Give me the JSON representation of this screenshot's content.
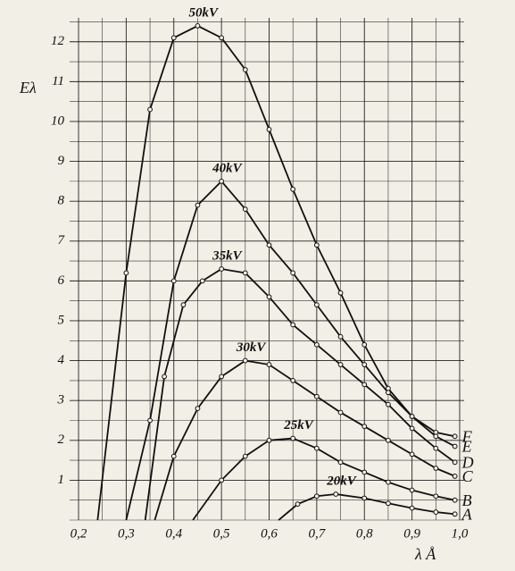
{
  "chart_data": {
    "type": "line",
    "ylabel": "Eλ",
    "xlabel": "λ Å",
    "xlim": [
      0.2,
      1.0
    ],
    "ylim": [
      0,
      12.6
    ],
    "xticks": [
      {
        "value": 0.2,
        "label": "0,2"
      },
      {
        "value": 0.3,
        "label": "0,3"
      },
      {
        "value": 0.4,
        "label": "0,4"
      },
      {
        "value": 0.5,
        "label": "0,5"
      },
      {
        "value": 0.6,
        "label": "0,6"
      },
      {
        "value": 0.7,
        "label": "0,7"
      },
      {
        "value": 0.8,
        "label": "0,8"
      },
      {
        "value": 0.9,
        "label": "0,9"
      },
      {
        "value": 1.0,
        "label": "1,0"
      }
    ],
    "yticks": [
      1,
      2,
      3,
      4,
      5,
      6,
      7,
      8,
      9,
      10,
      11,
      12
    ],
    "xminorticks": [
      0.25,
      0.35,
      0.45,
      0.55,
      0.65,
      0.75,
      0.85,
      0.95
    ],
    "yminorticks": [
      0,
      0.5,
      1.5,
      2.5,
      3.5,
      4.5,
      5.5,
      6.5,
      7.5,
      8.5,
      9.5,
      10.5,
      11.5,
      12.5
    ],
    "grid": true,
    "color": "#111111",
    "series": [
      {
        "name": "50kV",
        "end_label": "F",
        "x": [
          0.24,
          0.3,
          0.35,
          0.4,
          0.45,
          0.5,
          0.55,
          0.6,
          0.65,
          0.7,
          0.75,
          0.8,
          0.85,
          0.9,
          0.95,
          0.99
        ],
        "values": [
          0,
          6.2,
          10.3,
          12.1,
          12.4,
          12.1,
          11.3,
          9.8,
          8.3,
          6.9,
          5.7,
          4.4,
          3.3,
          2.6,
          2.2,
          2.1
        ]
      },
      {
        "name": "40kV",
        "end_label": "E",
        "x": [
          0.3,
          0.35,
          0.4,
          0.45,
          0.5,
          0.55,
          0.6,
          0.65,
          0.7,
          0.75,
          0.8,
          0.85,
          0.9,
          0.95,
          0.99
        ],
        "values": [
          0,
          2.5,
          6.0,
          7.9,
          8.5,
          7.8,
          6.9,
          6.2,
          5.4,
          4.6,
          3.9,
          3.2,
          2.6,
          2.1,
          1.85
        ]
      },
      {
        "name": "35kV",
        "end_label": "D",
        "x": [
          0.34,
          0.38,
          0.42,
          0.46,
          0.5,
          0.55,
          0.6,
          0.65,
          0.7,
          0.75,
          0.8,
          0.85,
          0.9,
          0.95,
          0.99
        ],
        "values": [
          0,
          3.6,
          5.4,
          6.0,
          6.3,
          6.2,
          5.6,
          4.9,
          4.4,
          3.9,
          3.4,
          2.9,
          2.3,
          1.8,
          1.45
        ]
      },
      {
        "name": "30kV",
        "end_label": "C",
        "x": [
          0.36,
          0.4,
          0.45,
          0.5,
          0.55,
          0.6,
          0.65,
          0.7,
          0.75,
          0.8,
          0.85,
          0.9,
          0.95,
          0.99
        ],
        "values": [
          0,
          1.6,
          2.8,
          3.6,
          4.0,
          3.9,
          3.5,
          3.1,
          2.7,
          2.35,
          2.0,
          1.65,
          1.3,
          1.1
        ]
      },
      {
        "name": "25kV",
        "end_label": "B",
        "x": [
          0.44,
          0.5,
          0.55,
          0.6,
          0.65,
          0.7,
          0.75,
          0.8,
          0.85,
          0.9,
          0.95,
          0.99
        ],
        "values": [
          0,
          1.0,
          1.6,
          2.0,
          2.05,
          1.8,
          1.45,
          1.2,
          0.95,
          0.75,
          0.6,
          0.5
        ]
      },
      {
        "name": "20kV",
        "end_label": "A",
        "x": [
          0.62,
          0.66,
          0.7,
          0.74,
          0.8,
          0.85,
          0.9,
          0.95,
          0.99
        ],
        "values": [
          0,
          0.4,
          0.6,
          0.65,
          0.55,
          0.42,
          0.3,
          0.2,
          0.15
        ]
      }
    ]
  }
}
